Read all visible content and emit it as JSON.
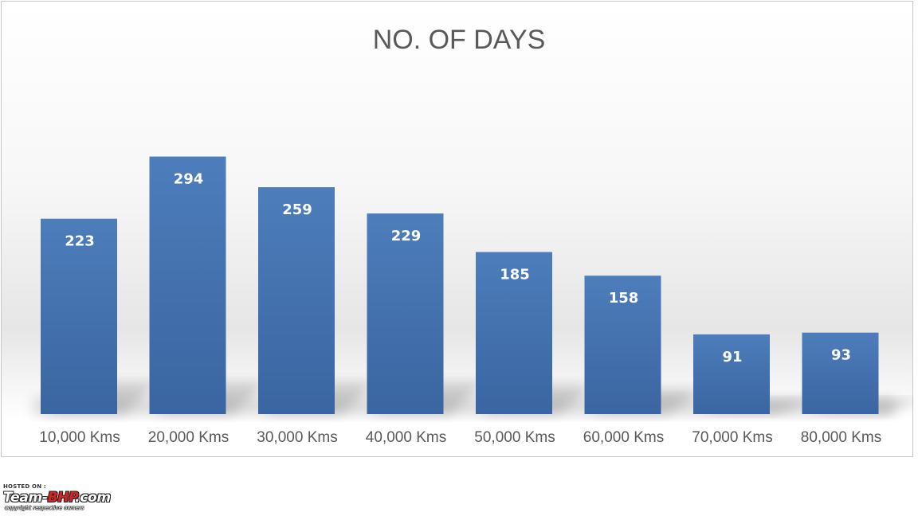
{
  "chart_data": {
    "type": "bar",
    "title": "NO. OF DAYS",
    "xlabel": "",
    "ylabel": "",
    "categories": [
      "10,000 Kms",
      "20,000 Kms",
      "30,000 Kms",
      "40,000 Kms",
      "50,000 Kms",
      "60,000 Kms",
      "70,000 Kms",
      "80,000 Kms"
    ],
    "values": [
      223,
      294,
      259,
      229,
      185,
      158,
      91,
      93
    ],
    "ylim": [
      0,
      330
    ],
    "grid": false,
    "legend": "none",
    "data_labels": "inside-top",
    "bar_color": "#4a7ab8",
    "bar_color_dark": "#3a65a1",
    "label_color": "#ffffff",
    "title_color": "#595959",
    "tick_color": "#595959"
  },
  "watermark": {
    "hosted_on": "HOSTED ON :",
    "logo_part1": "Team-",
    "logo_part2": "BHP",
    "logo_part3": ".com",
    "copyright": "copyright respective owners"
  }
}
